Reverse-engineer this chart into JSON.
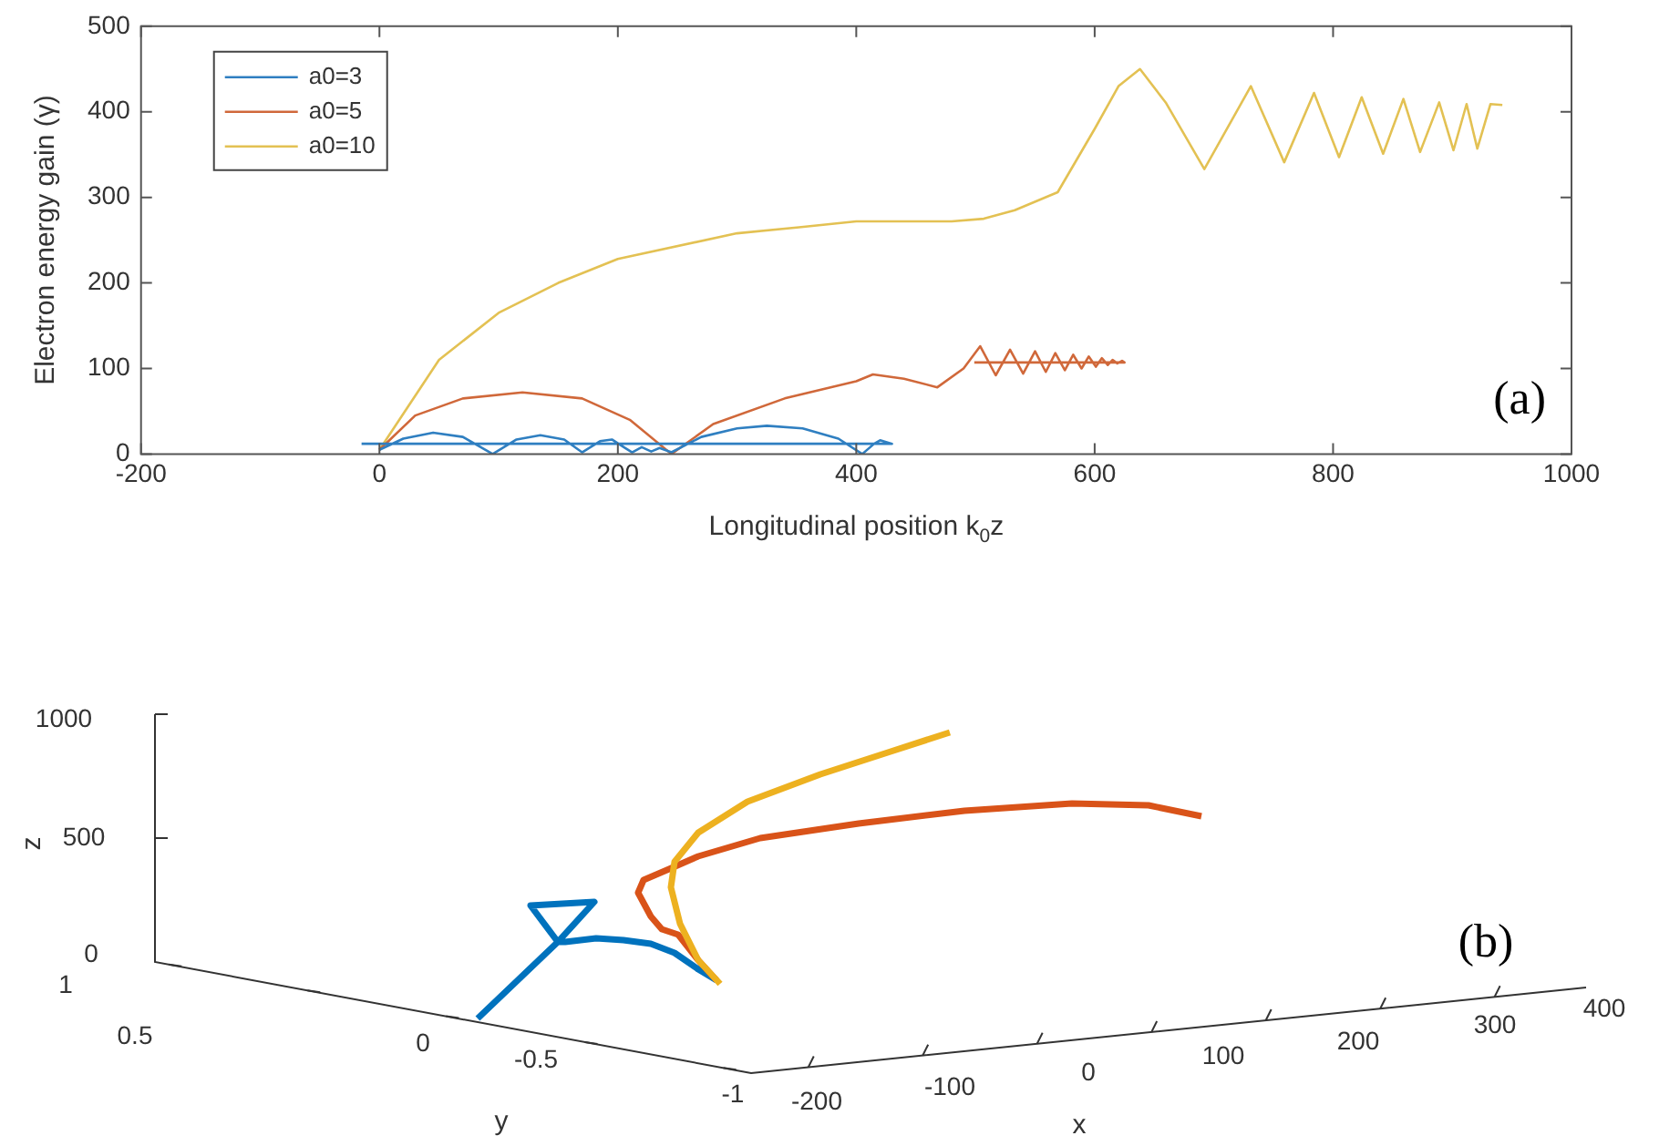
{
  "chart_data": [
    {
      "type": "line",
      "xlabel": "Longitudinal position k$_{0}$z",
      "ylabel": "Electron energy gain (γ)",
      "xlim": [
        -200,
        1000
      ],
      "xticks": [
        -200,
        0,
        200,
        400,
        600,
        800,
        1000
      ],
      "ylim": [
        0,
        500
      ],
      "yticks": [
        0,
        100,
        200,
        300,
        400,
        500
      ],
      "legend": "top left",
      "annotations": [
        "(a)"
      ],
      "series": [
        {
          "name": "a0=3",
          "color": "#2f7fc1",
          "x": [
            0,
            20,
            45,
            70,
            95,
            115,
            135,
            155,
            170,
            185,
            195,
            205,
            212,
            220,
            228,
            235,
            245,
            270,
            300,
            325,
            355,
            385,
            405,
            415,
            420,
            430,
            400,
            200,
            0,
            -15
          ],
          "values": [
            5,
            18,
            25,
            20,
            0,
            17,
            22,
            17,
            2,
            15,
            17,
            8,
            2,
            8,
            3,
            7,
            2,
            20,
            30,
            33,
            30,
            18,
            0,
            12,
            16,
            12,
            12,
            12,
            12,
            12
          ]
        },
        {
          "name": "a0=5",
          "color": "#d0683a",
          "x": [
            0,
            30,
            70,
            120,
            170,
            210,
            245,
            280,
            340,
            400,
            414,
            440,
            468,
            490,
            504,
            517,
            529,
            540,
            550,
            559,
            567,
            575,
            582,
            589,
            595,
            601,
            606,
            611,
            615,
            619,
            623,
            625,
            499
          ],
          "values": [
            5,
            45,
            65,
            72,
            65,
            40,
            0,
            35,
            65,
            85,
            93,
            88,
            78,
            100,
            126,
            92,
            122,
            94,
            120,
            96,
            118,
            98,
            116,
            100,
            114,
            102,
            112,
            104,
            110,
            106,
            109,
            107,
            107
          ]
        },
        {
          "name": "a0=10",
          "color": "#e3c153",
          "x": [
            0,
            50,
            100,
            150,
            200,
            300,
            352,
            400,
            480,
            507,
            533,
            569,
            600,
            620,
            638,
            660,
            692,
            731,
            759,
            784,
            805,
            824,
            842,
            859,
            873,
            889,
            901,
            912,
            921,
            932,
            942
          ],
          "values": [
            5,
            110,
            165,
            200,
            228,
            258,
            265,
            272,
            272,
            275,
            285,
            306,
            380,
            430,
            450,
            410,
            333,
            430,
            341,
            422,
            347,
            417,
            351,
            415,
            353,
            411,
            355,
            409,
            357,
            409,
            408
          ]
        }
      ]
    },
    {
      "type": "other",
      "xlabel": "x",
      "ylabel": "y",
      "annotations": [
        "z",
        "1000",
        "500",
        "0",
        "1",
        "0.5",
        "0",
        "-0.5",
        "-1",
        "-200",
        "-100",
        "0",
        "100",
        "200",
        "300",
        "400",
        "(b)"
      ]
    }
  ]
}
